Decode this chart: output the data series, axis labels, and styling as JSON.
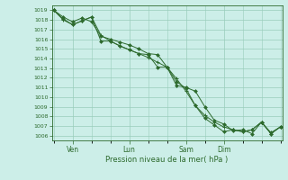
{
  "bg_color": "#cceee8",
  "grid_color": "#99ccbb",
  "line_color": "#2d6a2d",
  "marker_color": "#2d6a2d",
  "xlabel": "Pression niveau de la mer( hPa )",
  "ylim": [
    1005.5,
    1019.5
  ],
  "yticks": [
    1006,
    1007,
    1008,
    1009,
    1010,
    1011,
    1012,
    1013,
    1014,
    1015,
    1016,
    1017,
    1018,
    1019
  ],
  "x_tick_labels": [
    "Ven",
    "Lun",
    "Sam",
    "Dim"
  ],
  "x_tick_positions": [
    2,
    8,
    14,
    18
  ],
  "xlim": [
    -0.2,
    24.2
  ],
  "series1": [
    1019.0,
    1018.3,
    1017.8,
    1018.2,
    1017.8,
    1016.3,
    1016.0,
    1015.7,
    1015.4,
    1015.0,
    1014.5,
    1014.4,
    1013.1,
    1011.2,
    1011.0,
    1010.6,
    1009.0,
    1007.6,
    1007.2,
    1006.5,
    1006.6,
    1006.2,
    1007.4,
    1006.3,
    1006.9
  ],
  "series2": [
    1019.0,
    1018.1,
    1017.5,
    1017.9,
    1018.3,
    1015.8,
    1015.8,
    1015.3,
    1014.9,
    1014.5,
    1014.4,
    1013.1,
    1013.1,
    1011.6,
    1010.9,
    1009.1,
    1007.8,
    1007.1,
    1006.4,
    1006.6,
    1006.4,
    1006.6,
    1007.4,
    1006.2,
    1006.9
  ],
  "series3": [
    1019.0,
    1018.0,
    1017.5,
    1017.9,
    1018.3,
    1016.4,
    1015.8,
    1015.3,
    1014.9,
    1014.5,
    1014.1,
    1013.6,
    1013.1,
    1011.9,
    1010.6,
    1009.1,
    1008.1,
    1007.4,
    1006.9,
    1006.6,
    1006.4,
    1006.6,
    1007.4,
    1006.2,
    1006.9
  ]
}
